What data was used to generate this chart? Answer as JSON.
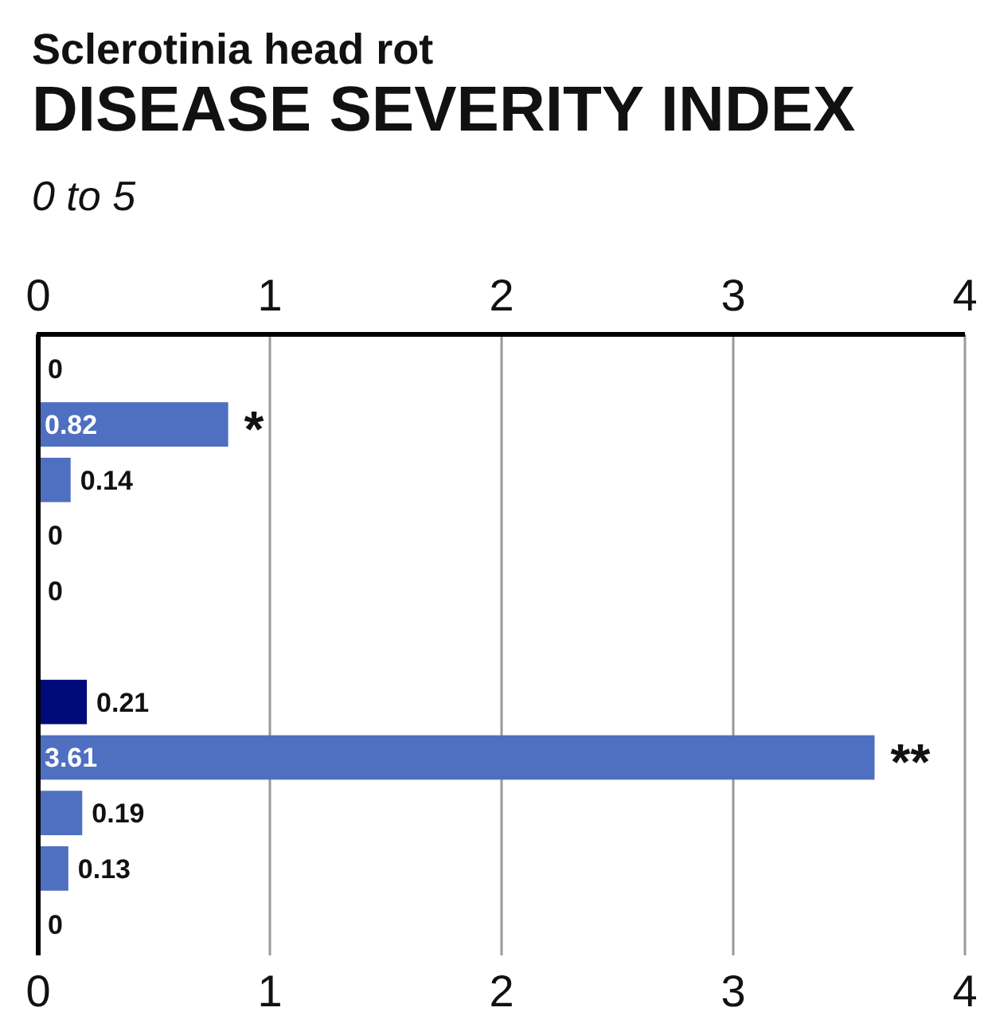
{
  "chart_data": {
    "type": "bar",
    "orientation": "horizontal",
    "title": "Sclerotinia head rot",
    "subtitle": "DISEASE SEVERITY INDEX",
    "annotations": [
      "0 to 5",
      {
        "text": "*",
        "x": 0.82
      },
      {
        "text": "**",
        "x": 3.61
      }
    ],
    "categories": [
      null,
      null,
      null,
      null,
      null,
      null,
      null,
      null,
      null,
      null,
      null
    ],
    "values": [
      0,
      0.82,
      0.14,
      0,
      0,
      null,
      0.21,
      3.61,
      0.19,
      0.13,
      0
    ],
    "colors": [
      "#4f6fc0",
      "#4f6fc0",
      "#4f6fc0",
      "#4f6fc0",
      "#4f6fc0",
      null,
      "#000a78",
      "#4f6fc0",
      "#4f6fc0",
      "#4f6fc0",
      "#4f6fc0"
    ],
    "data_labels": true,
    "xlim": [
      0,
      4
    ],
    "xticks": [
      0,
      1,
      2,
      3,
      4
    ],
    "x2lim": [
      0,
      4
    ],
    "x2ticks": [
      0,
      1,
      2,
      3,
      4
    ],
    "grid": "x"
  }
}
